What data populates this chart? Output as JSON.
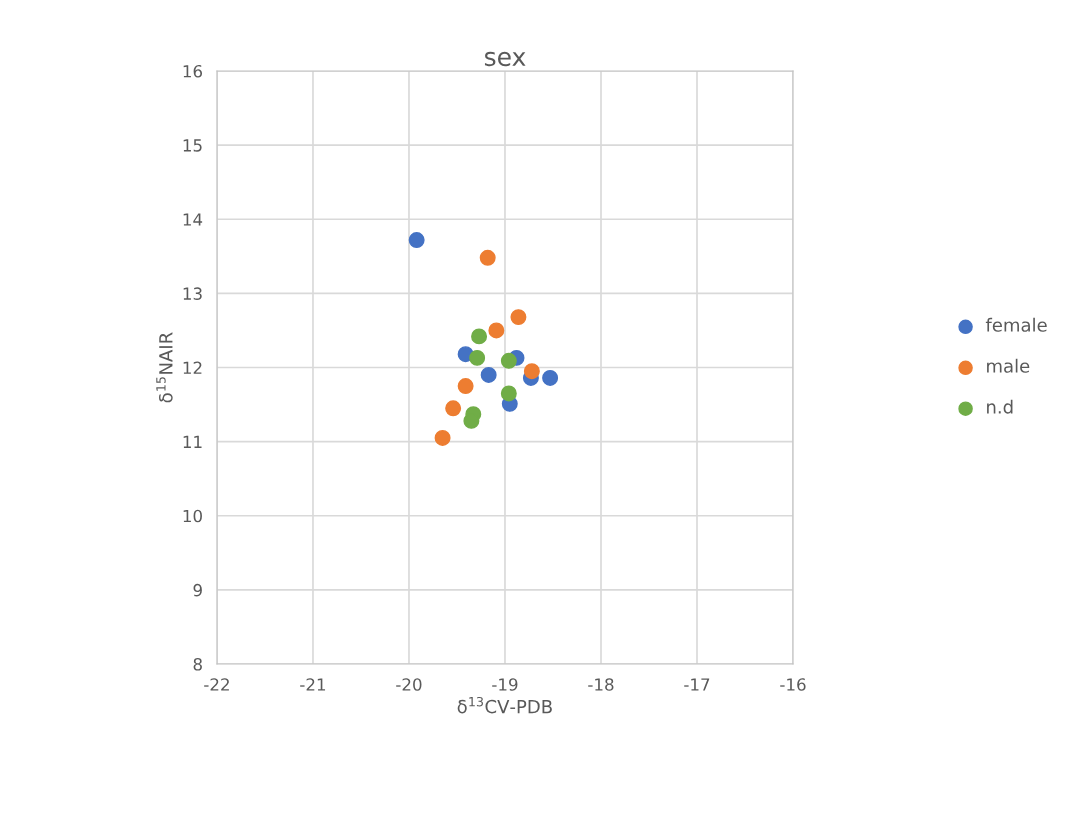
{
  "chart_data": {
    "type": "scatter",
    "title": "sex",
    "xlabel": "δ$^{13}$CV-PDB",
    "ylabel": "δ$^{15}$NAIR",
    "xlim": [
      -22,
      -16
    ],
    "xticks": [
      -22,
      -21,
      -20,
      -19,
      -18,
      -17,
      -16
    ],
    "ylim": [
      8,
      16
    ],
    "yticks": [
      8,
      9,
      10,
      11,
      12,
      13,
      14,
      15,
      16
    ],
    "grid": true,
    "legend": "right",
    "marker": "circle",
    "series": [
      {
        "name": "female",
        "color": "#4472c4",
        "x": [
          -19.92,
          -19.41,
          -18.88,
          -19.17,
          -18.73,
          -18.53,
          -18.95
        ],
        "values": [
          13.72,
          12.18,
          12.13,
          11.9,
          11.86,
          11.86,
          11.51
        ]
      },
      {
        "name": "male",
        "color": "#ed7d31",
        "x": [
          -19.18,
          -18.86,
          -19.09,
          -18.72,
          -19.41,
          -19.54,
          -19.65
        ],
        "values": [
          13.48,
          12.68,
          12.5,
          11.95,
          11.75,
          11.45,
          11.05
        ]
      },
      {
        "name": "n.d",
        "color": "#70ad47",
        "x": [
          -19.27,
          -19.29,
          -18.96,
          -18.96,
          -19.33,
          -19.35
        ],
        "values": [
          12.42,
          12.13,
          12.09,
          11.65,
          11.37,
          11.28
        ]
      }
    ]
  }
}
